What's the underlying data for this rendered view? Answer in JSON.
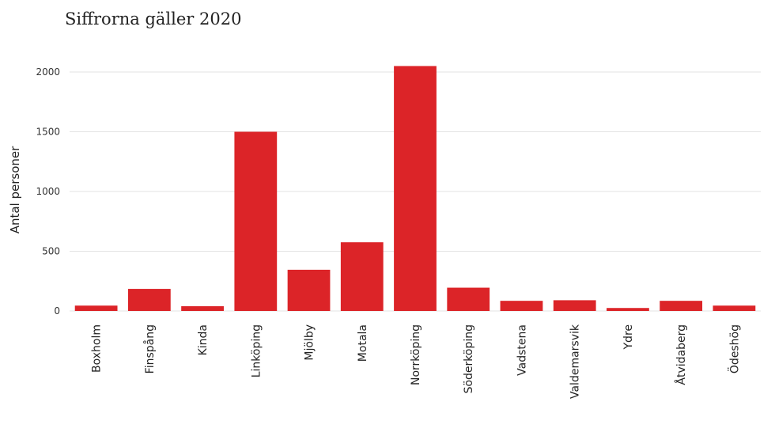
{
  "chart_data": {
    "type": "bar",
    "title": "Siffrorna gäller 2020",
    "xlabel": "",
    "ylabel": "Antal personer",
    "categories": [
      "Boxholm",
      "Finspång",
      "Kinda",
      "Linköping",
      "Mjölby",
      "Motala",
      "Norrköping",
      "Söderköping",
      "Vadstena",
      "Valdemarsvik",
      "Ydre",
      "Åtvidaberg",
      "Ödeshög"
    ],
    "values": [
      45,
      185,
      40,
      1500,
      345,
      575,
      2050,
      195,
      85,
      90,
      25,
      85,
      45
    ],
    "ylim": [
      0,
      2200
    ],
    "yticks": [
      0,
      500,
      1000,
      1500,
      2000
    ],
    "grid": true,
    "bar_color": "#dc2428"
  }
}
